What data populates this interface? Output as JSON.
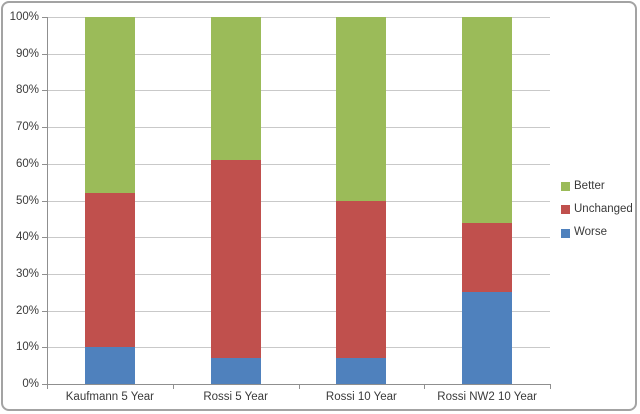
{
  "colors": {
    "background": "#FFFFFF",
    "frame_border": "#A3A3A3",
    "gridline": "#C9C9C9",
    "axis": "#8F8F8F",
    "text": "#3A3A3A",
    "series_worse": "#4F81BD",
    "series_unchanged": "#C0504D",
    "series_better": "#9BBB59"
  },
  "chart_data": {
    "type": "bar",
    "subtype": "stacked-100-percent-column",
    "title": "",
    "xlabel": "",
    "ylabel": "",
    "grid": true,
    "categories": [
      "Kaufmann 5 Year",
      "Rossi 5 Year",
      "Rossi 10 Year",
      "Rossi NW2 10 Year"
    ],
    "series": [
      {
        "name": "Worse",
        "color": "#4F81BD",
        "values": [
          10,
          7,
          7,
          25
        ]
      },
      {
        "name": "Unchanged",
        "color": "#C0504D",
        "values": [
          42,
          54,
          43,
          19
        ]
      },
      {
        "name": "Better",
        "color": "#9BBB59",
        "values": [
          48,
          39,
          50,
          56
        ]
      }
    ],
    "cumulative_boundaries_note": "Worse tops: 10,7,7,25 ; Unchanged tops: 52,61,50,44 ; Better tops: 100,100,100,100",
    "y_axis": {
      "min": 0,
      "max": 100,
      "step": 10,
      "ticks": [
        "0%",
        "10%",
        "20%",
        "30%",
        "40%",
        "50%",
        "60%",
        "70%",
        "80%",
        "90%",
        "100%"
      ]
    },
    "ylim": [
      0,
      100
    ],
    "legend": {
      "position": "right",
      "entries": [
        {
          "label": "Better",
          "color": "#9BBB59"
        },
        {
          "label": "Unchanged",
          "color": "#C0504D"
        },
        {
          "label": "Worse",
          "color": "#4F81BD"
        }
      ]
    }
  }
}
